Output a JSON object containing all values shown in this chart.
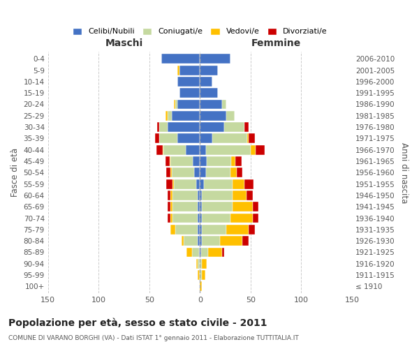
{
  "age_groups": [
    "100+",
    "95-99",
    "90-94",
    "85-89",
    "80-84",
    "75-79",
    "70-74",
    "65-69",
    "60-64",
    "55-59",
    "50-54",
    "45-49",
    "40-44",
    "35-39",
    "30-34",
    "25-29",
    "20-24",
    "15-19",
    "10-14",
    "5-9",
    "0-4"
  ],
  "birth_years": [
    "≤ 1910",
    "1911-1915",
    "1916-1920",
    "1921-1925",
    "1926-1930",
    "1931-1935",
    "1936-1940",
    "1941-1945",
    "1946-1950",
    "1951-1955",
    "1956-1960",
    "1961-1965",
    "1966-1970",
    "1971-1975",
    "1976-1980",
    "1981-1985",
    "1986-1990",
    "1991-1995",
    "1996-2000",
    "2001-2005",
    "2006-2010"
  ],
  "male_single": [
    0,
    0,
    0,
    1,
    2,
    2,
    2,
    2,
    2,
    4,
    6,
    7,
    14,
    22,
    32,
    28,
    22,
    20,
    22,
    20,
    38
  ],
  "male_married": [
    0,
    0,
    2,
    7,
    14,
    22,
    25,
    25,
    25,
    22,
    22,
    22,
    22,
    18,
    8,
    4,
    2,
    0,
    0,
    0,
    0
  ],
  "male_widowed": [
    0,
    2,
    2,
    5,
    2,
    5,
    2,
    2,
    2,
    1,
    1,
    1,
    1,
    0,
    0,
    2,
    2,
    0,
    0,
    2,
    0
  ],
  "male_divorced": [
    0,
    0,
    0,
    0,
    0,
    0,
    3,
    3,
    3,
    6,
    4,
    4,
    6,
    4,
    2,
    0,
    0,
    0,
    0,
    0,
    0
  ],
  "female_single": [
    0,
    0,
    0,
    1,
    2,
    2,
    2,
    2,
    2,
    4,
    6,
    7,
    6,
    12,
    24,
    26,
    22,
    18,
    12,
    18,
    30
  ],
  "female_married": [
    0,
    2,
    2,
    7,
    18,
    24,
    28,
    30,
    30,
    28,
    24,
    24,
    44,
    35,
    20,
    8,
    4,
    0,
    0,
    0,
    0
  ],
  "female_widowed": [
    2,
    3,
    5,
    14,
    22,
    22,
    22,
    20,
    14,
    12,
    6,
    4,
    5,
    1,
    0,
    0,
    0,
    0,
    0,
    0,
    0
  ],
  "female_divorced": [
    0,
    0,
    0,
    2,
    6,
    6,
    6,
    6,
    6,
    9,
    6,
    6,
    9,
    6,
    4,
    0,
    0,
    0,
    0,
    0,
    0
  ],
  "color_single": "#4472c4",
  "color_married": "#c5d9a0",
  "color_widowed": "#ffc000",
  "color_divorced": "#cc0000",
  "title": "Popolazione per età, sesso e stato civile - 2011",
  "subtitle": "COMUNE DI VARANO BORGHI (VA) - Dati ISTAT 1° gennaio 2011 - Elaborazione TUTTITALIA.IT",
  "xlabel_left": "Maschi",
  "xlabel_right": "Femmine",
  "ylabel_left": "Fasce di età",
  "ylabel_right": "Anni di nascita",
  "xlim": 150,
  "background_color": "#ffffff",
  "grid_color": "#cccccc"
}
